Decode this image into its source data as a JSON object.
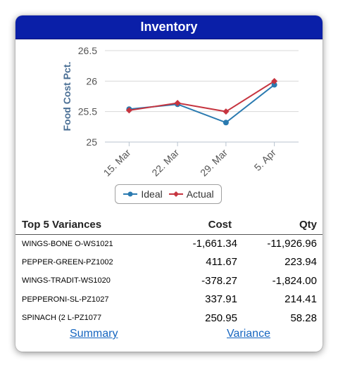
{
  "header": {
    "title": "Inventory"
  },
  "chart_data": {
    "type": "line",
    "ylabel": "Food Cost Pct.",
    "xlabel": "",
    "title": "",
    "categories": [
      "15. Mar",
      "22. Mar",
      "29. Mar",
      "5. Apr"
    ],
    "yticks": [
      "25",
      "25.5",
      "26",
      "26.5"
    ],
    "ylim": [
      25,
      26.5
    ],
    "grid": true,
    "legend": "bottom",
    "series": [
      {
        "name": "Ideal",
        "color": "#2a7ab0",
        "values": [
          25.54,
          25.62,
          25.32,
          25.94
        ]
      },
      {
        "name": "Actual",
        "color": "#c6343f",
        "values": [
          25.52,
          25.64,
          25.5,
          26.0
        ]
      }
    ]
  },
  "legend": {
    "ideal_label": "Ideal",
    "actual_label": "Actual"
  },
  "table": {
    "headers": {
      "name": "Top 5 Variances",
      "cost": "Cost",
      "qty": "Qty"
    },
    "rows": [
      {
        "name": "WINGS-BONE O-WS1021",
        "cost": "-1,661.34",
        "qty": "-11,926.96"
      },
      {
        "name": "PEPPER-GREEN-PZ1002",
        "cost": "411.67",
        "qty": "223.94"
      },
      {
        "name": "WINGS-TRADIT-WS1020",
        "cost": "-378.27",
        "qty": "-1,824.00"
      },
      {
        "name": "PEPPERONI-SL-PZ1027",
        "cost": "337.91",
        "qty": "214.41"
      },
      {
        "name": "SPINACH (2 L-PZ1077",
        "cost": "250.95",
        "qty": "58.28"
      }
    ]
  },
  "links": {
    "summary": "Summary",
    "variance": "Variance"
  }
}
